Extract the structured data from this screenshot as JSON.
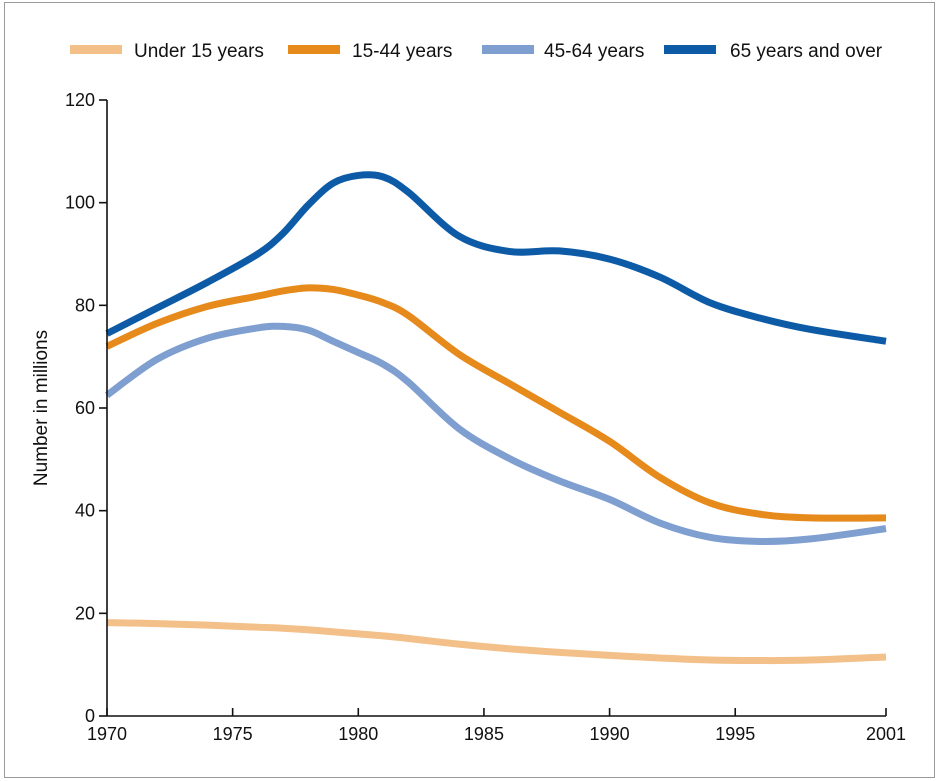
{
  "chart_data": {
    "type": "line",
    "title": "",
    "xlabel": "",
    "ylabel": "Number in millions",
    "xlim": [
      1970,
      2001
    ],
    "ylim": [
      0,
      120
    ],
    "xticks": [
      1970,
      1975,
      1980,
      1985,
      1990,
      1995,
      2001
    ],
    "yticks": [
      0,
      20,
      40,
      60,
      80,
      100,
      120
    ],
    "grid": false,
    "legend_position": "top",
    "x": [
      1970,
      1972,
      1974,
      1976,
      1977,
      1978,
      1979,
      1980,
      1981,
      1982,
      1984,
      1986,
      1988,
      1990,
      1992,
      1994,
      1996,
      1998,
      2001
    ],
    "series": [
      {
        "name": "Under 15 years",
        "color": "#f2c088",
        "values": [
          18.2,
          18.0,
          17.7,
          17.3,
          17.1,
          16.8,
          16.4,
          16.0,
          15.6,
          15.1,
          14.0,
          13.1,
          12.4,
          11.8,
          11.3,
          10.9,
          10.8,
          10.9,
          11.5
        ]
      },
      {
        "name": "15-44 years",
        "color": "#e68a1c",
        "values": [
          72.0,
          76.5,
          79.8,
          81.8,
          82.8,
          83.4,
          83.1,
          82.0,
          80.5,
          78.0,
          70.5,
          64.8,
          59.2,
          53.5,
          46.5,
          41.5,
          39.3,
          38.6,
          38.6
        ]
      },
      {
        "name": "45-64 years",
        "color": "#7f9fd0",
        "values": [
          62.5,
          69.5,
          73.6,
          75.6,
          75.9,
          75.2,
          73.0,
          70.8,
          68.5,
          65.0,
          56.0,
          50.2,
          45.8,
          42.2,
          37.6,
          34.8,
          34.0,
          34.5,
          36.5
        ]
      },
      {
        "name": "65 years and over",
        "color": "#0d5ba6",
        "values": [
          74.5,
          79.5,
          84.5,
          90.0,
          94.0,
          99.5,
          103.8,
          105.3,
          105.0,
          102.0,
          93.5,
          90.5,
          90.6,
          89.0,
          85.5,
          80.5,
          77.5,
          75.3,
          73.0
        ]
      }
    ]
  }
}
